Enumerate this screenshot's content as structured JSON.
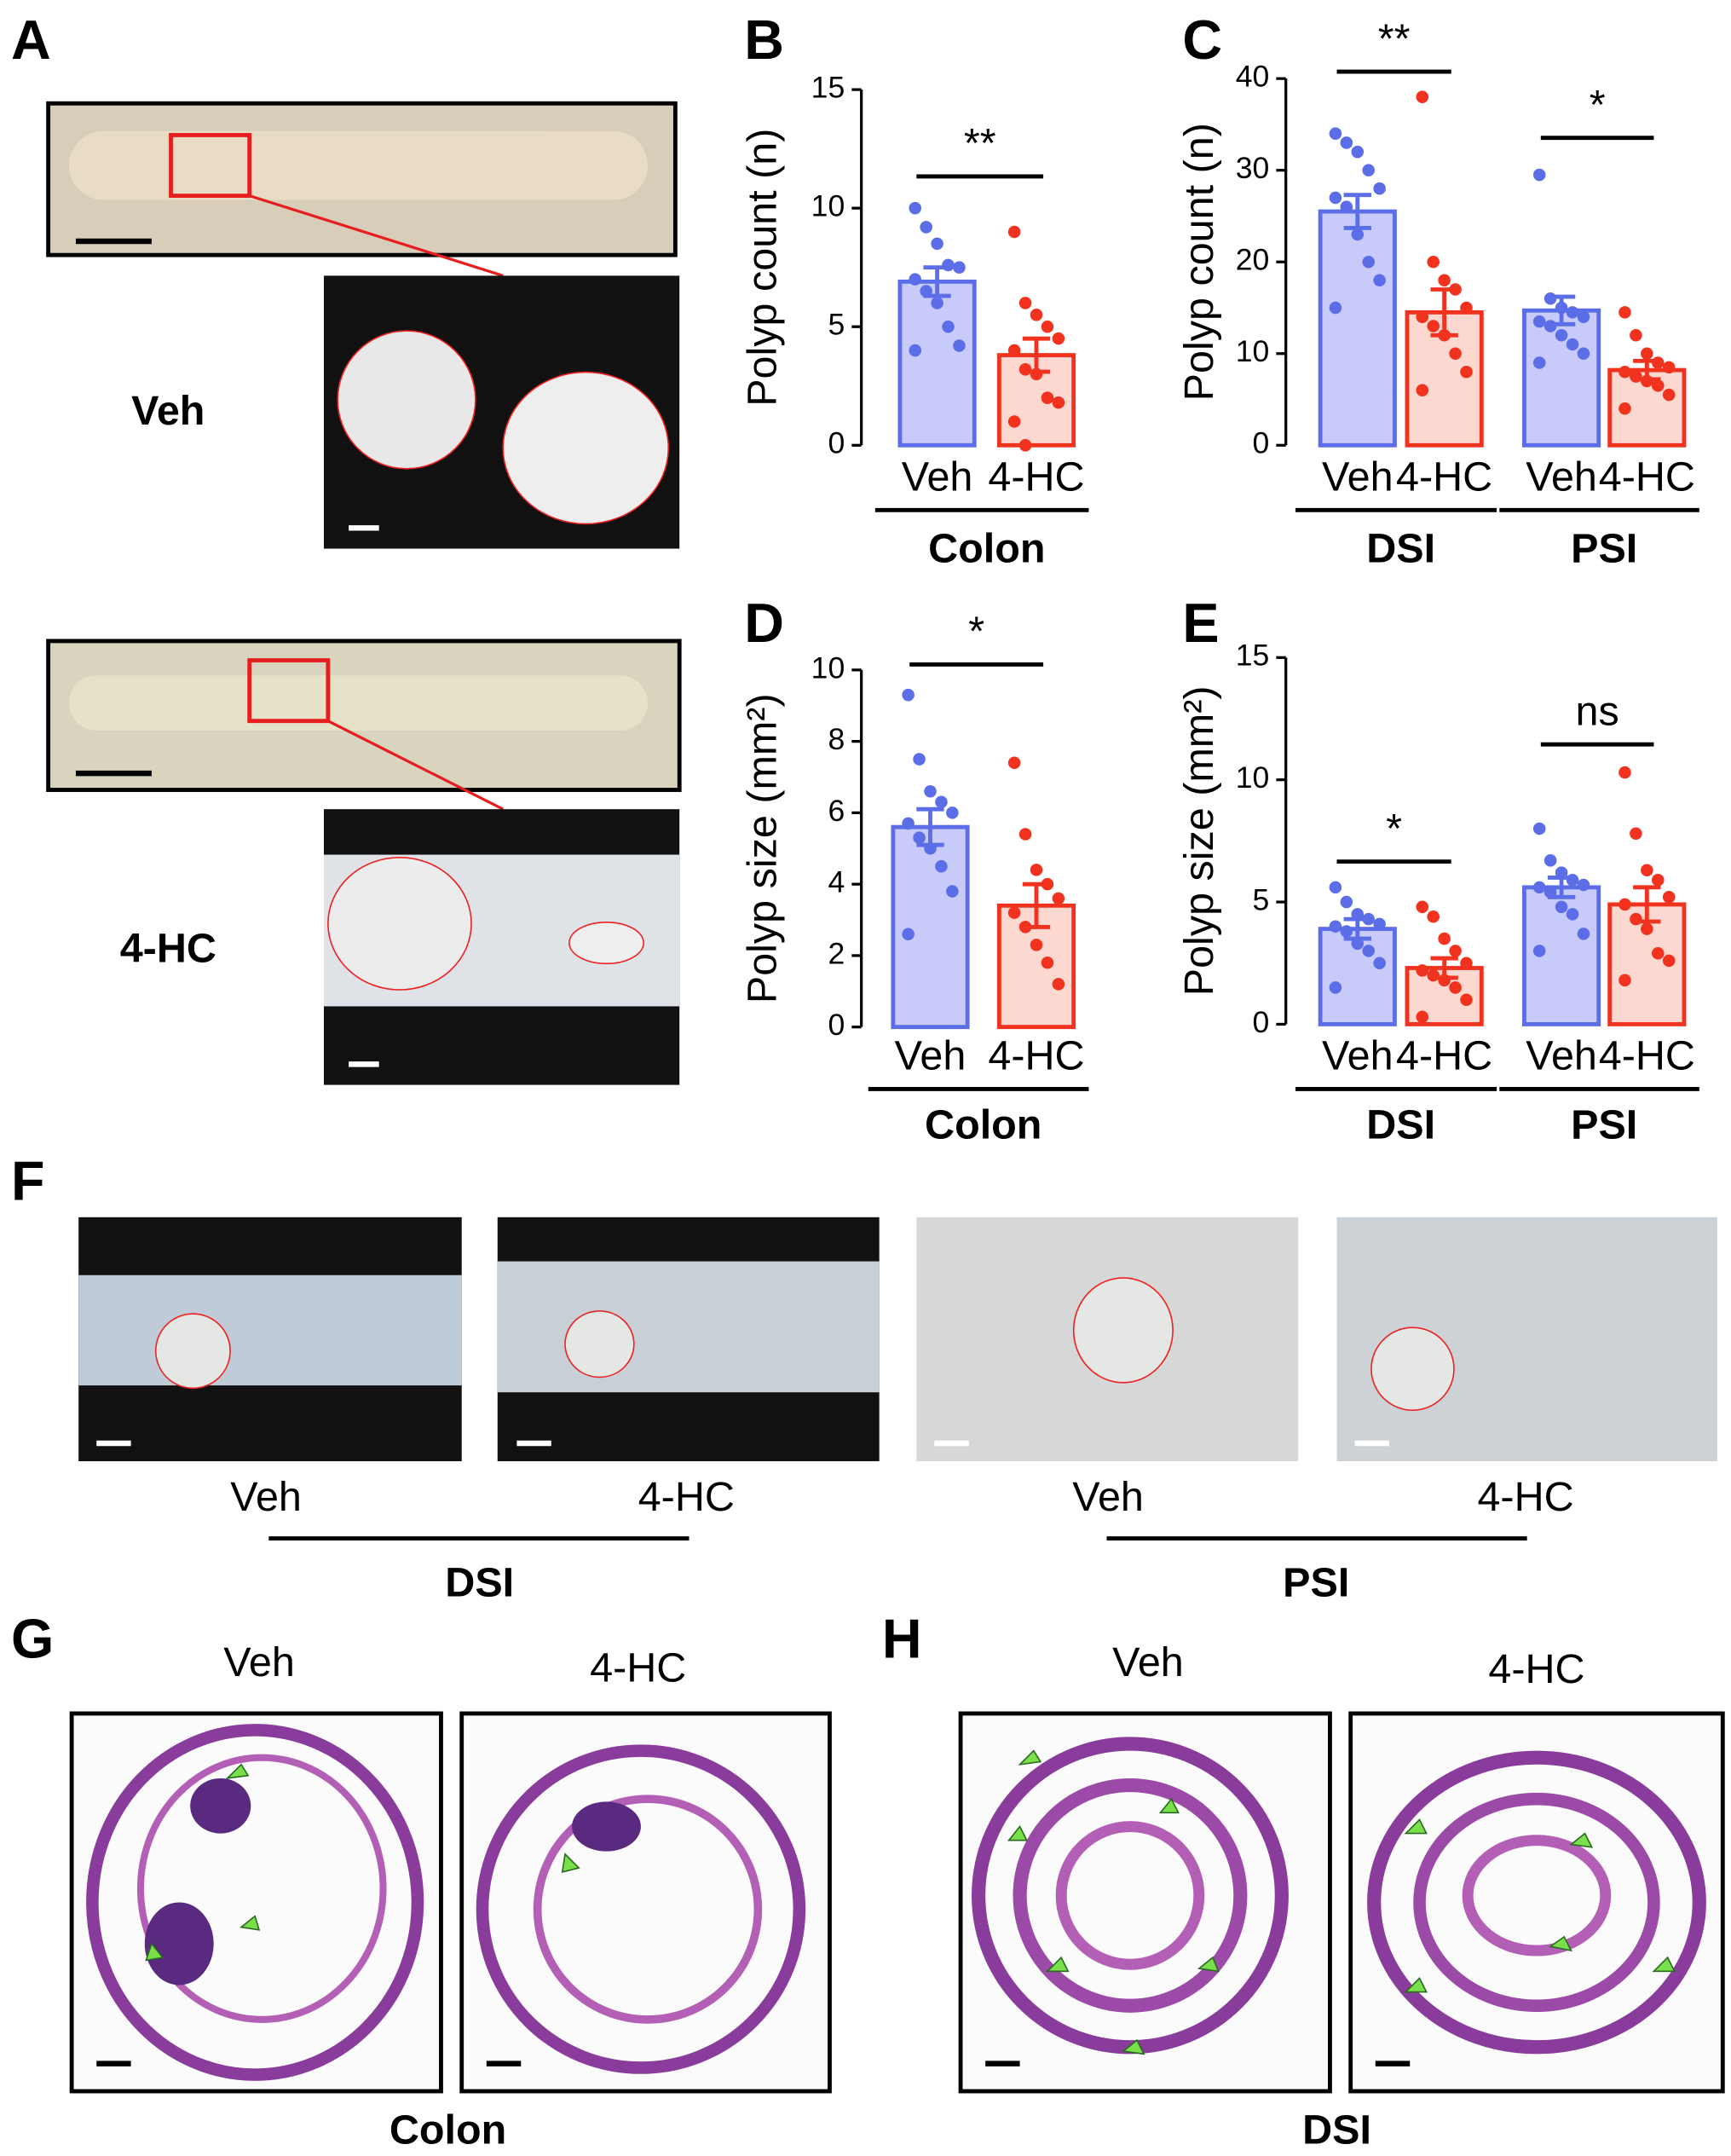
{
  "figure": {
    "A": {
      "panel": "A",
      "top_label": "Veh",
      "bottom_label": "4-HC"
    },
    "F": {
      "panel": "F",
      "labels": [
        "Veh",
        "4-HC",
        "Veh",
        "4-HC"
      ],
      "groups": [
        "DSI",
        "PSI"
      ]
    },
    "G": {
      "panel": "G",
      "labels": [
        "Veh",
        "4-HC"
      ],
      "tissue": "Colon"
    },
    "H": {
      "panel": "H",
      "labels": [
        "Veh",
        "4-HC"
      ],
      "tissue": "DSI"
    }
  },
  "chart_data": [
    {
      "type": "bar",
      "panel": "B",
      "y_label": "Polyp count (n)",
      "ylim": [
        0,
        15
      ],
      "yticks": [
        0,
        5,
        10,
        15
      ],
      "groups": [
        {
          "label": "Colon",
          "significance": "**",
          "series": [
            {
              "name": "Veh",
              "color": "#5b6ee8",
              "fill": "#c8cbf9",
              "mean": 6.9,
              "sem": 0.6,
              "points": [
                10,
                9.2,
                8.5,
                7.6,
                7.5,
                7,
                6.5,
                6,
                5,
                4.2,
                4
              ]
            },
            {
              "name": "4-HC",
              "color": "#f0321e",
              "fill": "#fcd8d0",
              "mean": 3.8,
              "sem": 0.7,
              "points": [
                9,
                6,
                5.5,
                5,
                4.5,
                4,
                3.2,
                3,
                2,
                1.8,
                1,
                0
              ]
            }
          ]
        }
      ]
    },
    {
      "type": "bar",
      "panel": "C",
      "y_label": "Polyp count (n)",
      "ylim": [
        0,
        40
      ],
      "yticks": [
        0,
        10,
        20,
        30,
        40
      ],
      "groups": [
        {
          "label": "DSI",
          "significance": "**",
          "series": [
            {
              "name": "Veh",
              "color": "#5b6ee8",
              "fill": "#c8cbf9",
              "mean": 25.5,
              "sem": 1.8,
              "points": [
                34,
                33,
                32,
                30,
                28,
                27,
                26,
                23,
                20,
                18,
                15
              ]
            },
            {
              "name": "4-HC",
              "color": "#f0321e",
              "fill": "#fcd8d0",
              "mean": 14.5,
              "sem": 2.5,
              "points": [
                38,
                20,
                18,
                17,
                15,
                14,
                13,
                12,
                10,
                8,
                6
              ]
            }
          ]
        },
        {
          "label": "PSI",
          "significance": "*",
          "series": [
            {
              "name": "Veh",
              "color": "#5b6ee8",
              "fill": "#c8cbf9",
              "mean": 14.7,
              "sem": 1.5,
              "points": [
                29.5,
                16,
                15,
                14.5,
                14,
                13.5,
                13,
                12,
                11,
                10,
                9
              ]
            },
            {
              "name": "4-HC",
              "color": "#f0321e",
              "fill": "#fcd8d0",
              "mean": 8.2,
              "sem": 1,
              "points": [
                14.5,
                12,
                10,
                9,
                8.5,
                8,
                7.5,
                7,
                6.5,
                5.5,
                4
              ]
            }
          ]
        }
      ]
    },
    {
      "type": "bar",
      "panel": "D",
      "y_label": "Polyp size (mm²)",
      "ylim": [
        0,
        10
      ],
      "yticks": [
        0,
        2,
        4,
        6,
        8,
        10
      ],
      "groups": [
        {
          "label": "Colon",
          "significance": "*",
          "series": [
            {
              "name": "Veh",
              "color": "#5b6ee8",
              "fill": "#c8cbf9",
              "mean": 5.6,
              "sem": 0.5,
              "points": [
                9.3,
                7.5,
                6.6,
                6.3,
                6,
                5.7,
                5.3,
                5,
                4.5,
                3.8,
                2.6
              ]
            },
            {
              "name": "4-HC",
              "color": "#f0321e",
              "fill": "#fcd8d0",
              "mean": 3.4,
              "sem": 0.6,
              "points": [
                7.4,
                5.4,
                4.4,
                4,
                3.6,
                3.2,
                2.8,
                2.3,
                1.8,
                1.2
              ]
            }
          ]
        }
      ]
    },
    {
      "type": "bar",
      "panel": "E",
      "y_label": "Polyp size (mm²)",
      "ylim": [
        0,
        15
      ],
      "yticks": [
        0,
        5,
        10,
        15
      ],
      "groups": [
        {
          "label": "DSI",
          "significance": "*",
          "series": [
            {
              "name": "Veh",
              "color": "#5b6ee8",
              "fill": "#c8cbf9",
              "mean": 3.9,
              "sem": 0.4,
              "points": [
                5.6,
                5,
                4.5,
                4.3,
                4.1,
                4,
                3.8,
                3.3,
                3,
                2.5,
                1.5
              ]
            },
            {
              "name": "4-HC",
              "color": "#f0321e",
              "fill": "#fcd8d0",
              "mean": 2.3,
              "sem": 0.4,
              "points": [
                4.8,
                4.4,
                3.5,
                3,
                2.5,
                2.2,
                2,
                1.8,
                1.5,
                1,
                0.3
              ]
            }
          ]
        },
        {
          "label": "PSI",
          "significance": "ns",
          "series": [
            {
              "name": "Veh",
              "color": "#5b6ee8",
              "fill": "#c8cbf9",
              "mean": 5.6,
              "sem": 0.4,
              "points": [
                8,
                6.7,
                6.2,
                5.9,
                5.7,
                5.6,
                5.4,
                4.8,
                4.5,
                3.7,
                3
              ]
            },
            {
              "name": "4-HC",
              "color": "#f0321e",
              "fill": "#fcd8d0",
              "mean": 4.9,
              "sem": 0.7,
              "points": [
                10.3,
                7.8,
                6.3,
                5.9,
                5.2,
                4.9,
                4.3,
                3.9,
                2.9,
                2.6,
                1.8
              ]
            }
          ]
        }
      ]
    }
  ]
}
